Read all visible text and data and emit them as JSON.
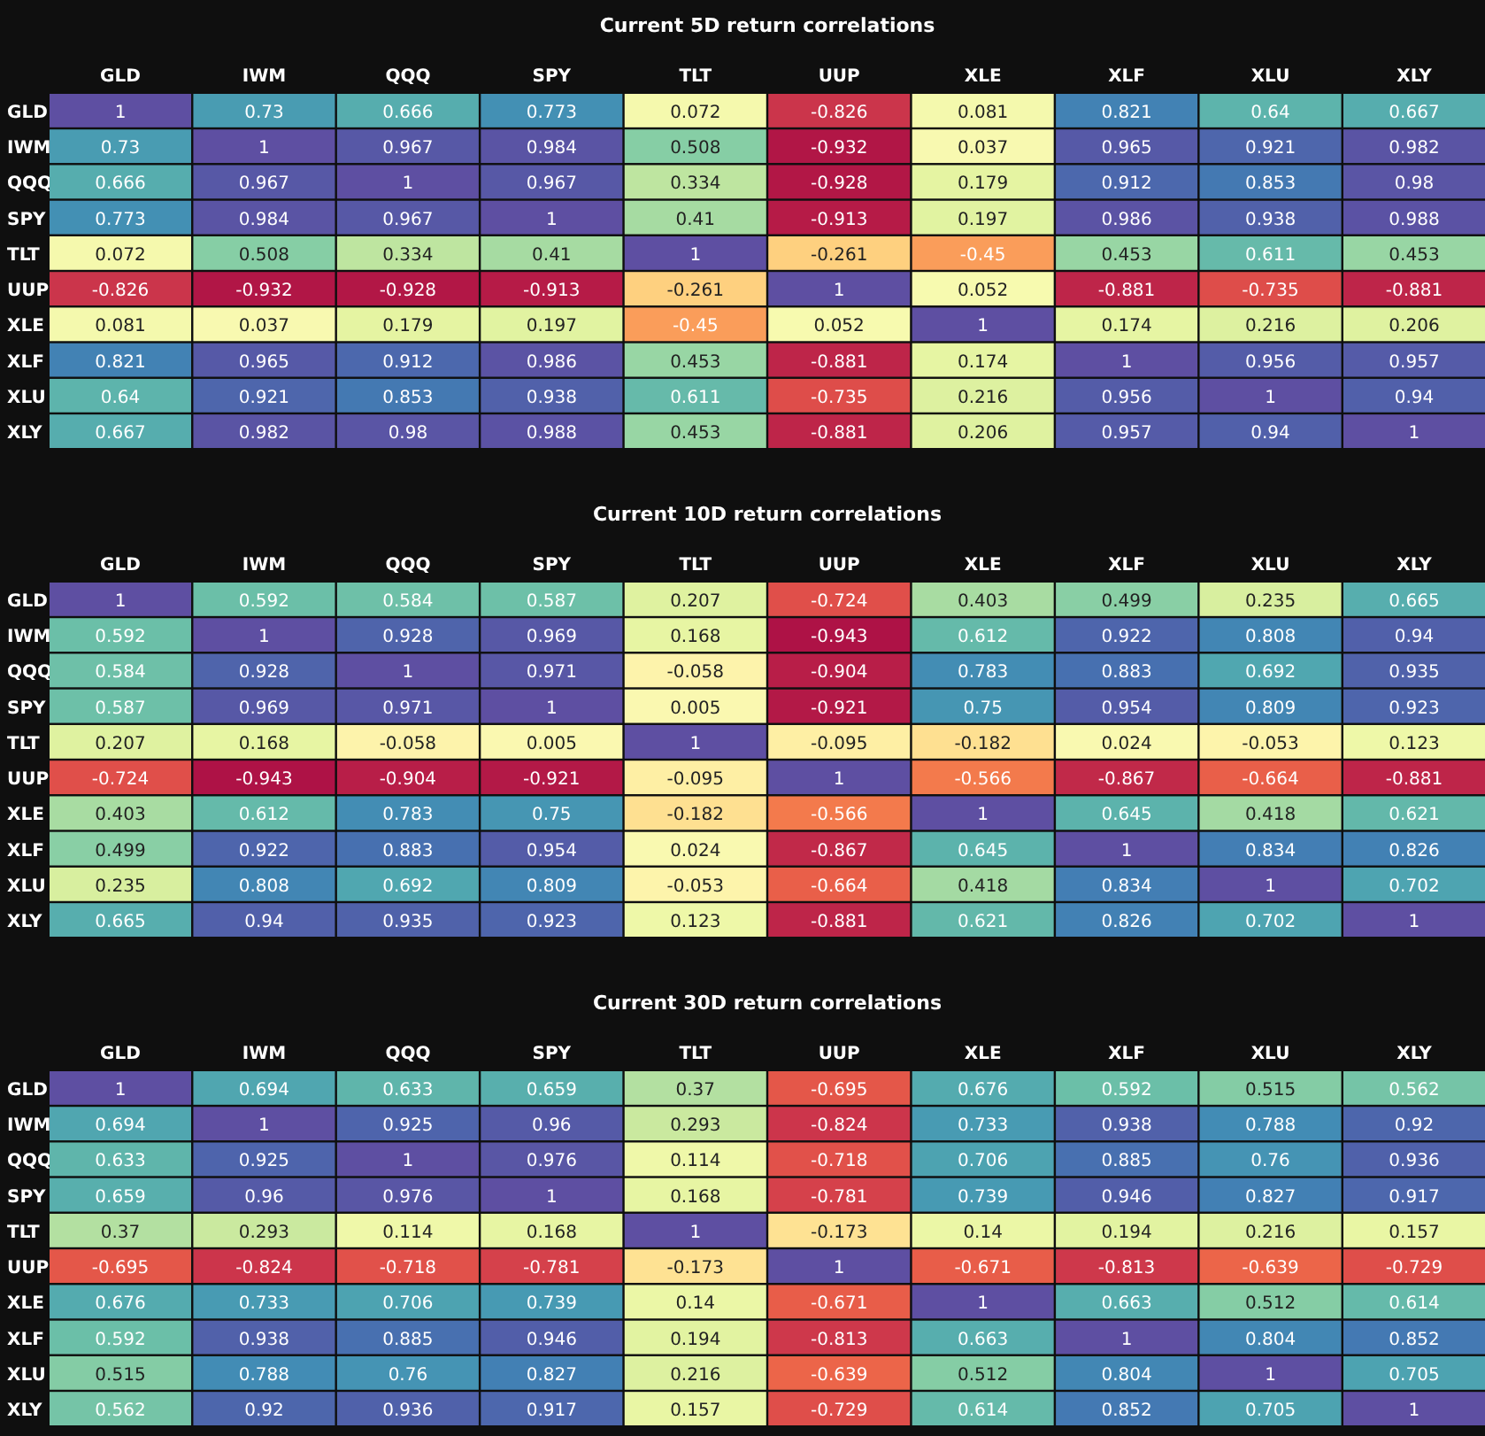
{
  "chart_data": [
    {
      "type": "heatmap",
      "title": "Current 5D return correlations",
      "categories": [
        "GLD",
        "IWM",
        "QQQ",
        "SPY",
        "TLT",
        "UUP",
        "XLE",
        "XLF",
        "XLU",
        "XLY"
      ],
      "y_categories": [
        "GLD",
        "IWM",
        "QQQ",
        "SPY",
        "TLT",
        "UUP",
        "XLE",
        "XLF",
        "XLU",
        "XLY"
      ],
      "data_labels": true,
      "cells": [
        [
          1,
          0.73,
          0.666,
          0.773,
          0.072,
          -0.826,
          0.081,
          0.821,
          0.64,
          0.667
        ],
        [
          0.73,
          1,
          0.967,
          0.984,
          0.508,
          -0.932,
          0.037,
          0.965,
          0.921,
          0.982
        ],
        [
          0.666,
          0.967,
          1,
          0.967,
          0.334,
          -0.928,
          0.179,
          0.912,
          0.853,
          0.98
        ],
        [
          0.773,
          0.984,
          0.967,
          1,
          0.41,
          -0.913,
          0.197,
          0.986,
          0.938,
          0.988
        ],
        [
          0.072,
          0.508,
          0.334,
          0.41,
          1,
          -0.261,
          -0.45,
          0.453,
          0.611,
          0.453
        ],
        [
          -0.826,
          -0.932,
          -0.928,
          -0.913,
          -0.261,
          1,
          0.052,
          -0.881,
          -0.735,
          -0.881
        ],
        [
          0.081,
          0.037,
          0.179,
          0.197,
          -0.45,
          0.052,
          1,
          0.174,
          0.216,
          0.206
        ],
        [
          0.821,
          0.965,
          0.912,
          0.986,
          0.453,
          -0.881,
          0.174,
          1,
          0.956,
          0.957
        ],
        [
          0.64,
          0.921,
          0.853,
          0.938,
          0.611,
          -0.735,
          0.216,
          0.956,
          1,
          0.94
        ],
        [
          0.667,
          0.982,
          0.98,
          0.988,
          0.453,
          -0.881,
          0.206,
          0.957,
          0.94,
          1
        ]
      ]
    },
    {
      "type": "heatmap",
      "title": "Current 10D return correlations",
      "categories": [
        "GLD",
        "IWM",
        "QQQ",
        "SPY",
        "TLT",
        "UUP",
        "XLE",
        "XLF",
        "XLU",
        "XLY"
      ],
      "y_categories": [
        "GLD",
        "IWM",
        "QQQ",
        "SPY",
        "TLT",
        "UUP",
        "XLE",
        "XLF",
        "XLU",
        "XLY"
      ],
      "data_labels": true,
      "cells": [
        [
          1,
          0.592,
          0.584,
          0.587,
          0.207,
          -0.724,
          0.403,
          0.499,
          0.235,
          0.665
        ],
        [
          0.592,
          1,
          0.928,
          0.969,
          0.168,
          -0.943,
          0.612,
          0.922,
          0.808,
          0.94
        ],
        [
          0.584,
          0.928,
          1,
          0.971,
          -0.058,
          -0.904,
          0.783,
          0.883,
          0.692,
          0.935
        ],
        [
          0.587,
          0.969,
          0.971,
          1,
          0.005,
          -0.921,
          0.75,
          0.954,
          0.809,
          0.923
        ],
        [
          0.207,
          0.168,
          -0.058,
          0.005,
          1,
          -0.095,
          -0.182,
          0.024,
          -0.053,
          0.123
        ],
        [
          -0.724,
          -0.943,
          -0.904,
          -0.921,
          -0.095,
          1,
          -0.566,
          -0.867,
          -0.664,
          -0.881
        ],
        [
          0.403,
          0.612,
          0.783,
          0.75,
          -0.182,
          -0.566,
          1,
          0.645,
          0.418,
          0.621
        ],
        [
          0.499,
          0.922,
          0.883,
          0.954,
          0.024,
          -0.867,
          0.645,
          1,
          0.834,
          0.826
        ],
        [
          0.235,
          0.808,
          0.692,
          0.809,
          -0.053,
          -0.664,
          0.418,
          0.834,
          1,
          0.702
        ],
        [
          0.665,
          0.94,
          0.935,
          0.923,
          0.123,
          -0.881,
          0.621,
          0.826,
          0.702,
          1
        ]
      ]
    },
    {
      "type": "heatmap",
      "title": "Current 30D return correlations",
      "categories": [
        "GLD",
        "IWM",
        "QQQ",
        "SPY",
        "TLT",
        "UUP",
        "XLE",
        "XLF",
        "XLU",
        "XLY"
      ],
      "y_categories": [
        "GLD",
        "IWM",
        "QQQ",
        "SPY",
        "TLT",
        "UUP",
        "XLE",
        "XLF",
        "XLU",
        "XLY"
      ],
      "data_labels": true,
      "cells": [
        [
          1,
          0.694,
          0.633,
          0.659,
          0.37,
          -0.695,
          0.676,
          0.592,
          0.515,
          0.562
        ],
        [
          0.694,
          1,
          0.925,
          0.96,
          0.293,
          -0.824,
          0.733,
          0.938,
          0.788,
          0.92
        ],
        [
          0.633,
          0.925,
          1,
          0.976,
          0.114,
          -0.718,
          0.706,
          0.885,
          0.76,
          0.936
        ],
        [
          0.659,
          0.96,
          0.976,
          1,
          0.168,
          -0.781,
          0.739,
          0.946,
          0.827,
          0.917
        ],
        [
          0.37,
          0.293,
          0.114,
          0.168,
          1,
          -0.173,
          0.14,
          0.194,
          0.216,
          0.157
        ],
        [
          -0.695,
          -0.824,
          -0.718,
          -0.781,
          -0.173,
          1,
          -0.671,
          -0.813,
          -0.639,
          -0.729
        ],
        [
          0.676,
          0.733,
          0.706,
          0.739,
          0.14,
          -0.671,
          1,
          0.663,
          0.512,
          0.614
        ],
        [
          0.592,
          0.938,
          0.885,
          0.946,
          0.194,
          -0.813,
          0.663,
          1,
          0.804,
          0.852
        ],
        [
          0.515,
          0.788,
          0.76,
          0.827,
          0.216,
          -0.639,
          0.512,
          0.804,
          1,
          0.705
        ],
        [
          0.562,
          0.92,
          0.936,
          0.917,
          0.157,
          -0.729,
          0.614,
          0.852,
          0.705,
          1
        ]
      ]
    }
  ]
}
